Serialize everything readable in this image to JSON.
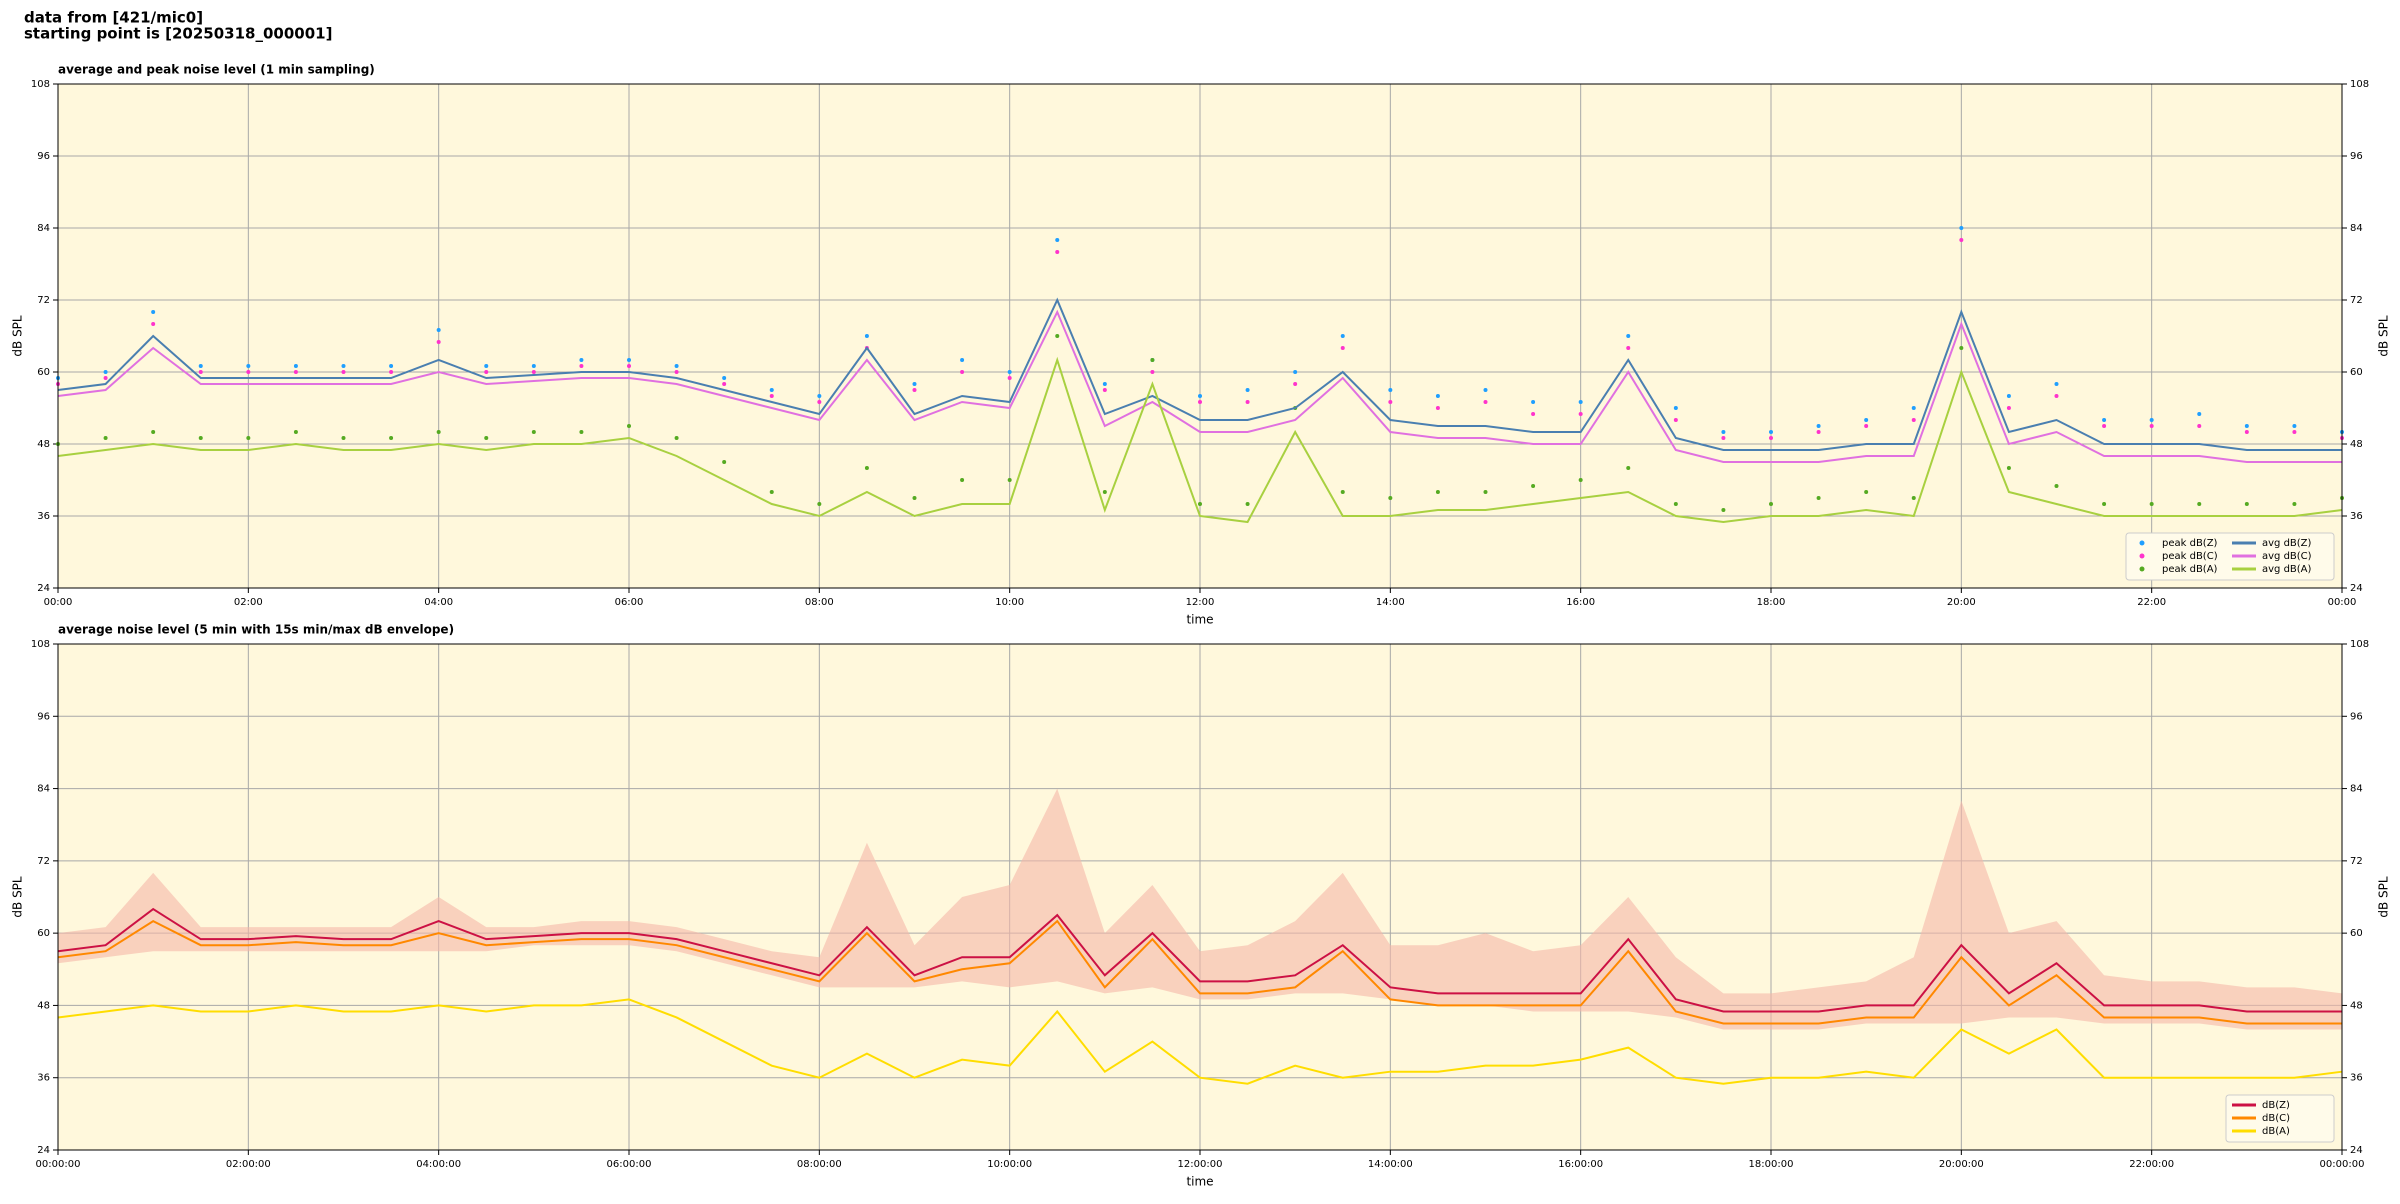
{
  "header": {
    "lines": [
      "data from [421/mic0]",
      "starting point is [20250318_000001]"
    ]
  },
  "chart_data": [
    {
      "type": "line",
      "title": "average and peak noise level (1 min sampling)",
      "x_label": "time",
      "y_label": "dB SPL",
      "y2_label": "dB SPL",
      "xlim": [
        0,
        24
      ],
      "xticks": [
        {
          "value": 0,
          "label": "00:00"
        },
        {
          "value": 2,
          "label": "02:00"
        },
        {
          "value": 4,
          "label": "04:00"
        },
        {
          "value": 6,
          "label": "06:00"
        },
        {
          "value": 8,
          "label": "08:00"
        },
        {
          "value": 10,
          "label": "10:00"
        },
        {
          "value": 12,
          "label": "12:00"
        },
        {
          "value": 14,
          "label": "14:00"
        },
        {
          "value": 16,
          "label": "16:00"
        },
        {
          "value": 18,
          "label": "18:00"
        },
        {
          "value": 20,
          "label": "20:00"
        },
        {
          "value": 22,
          "label": "22:00"
        },
        {
          "value": 24,
          "label": "00:00"
        }
      ],
      "ylim": [
        24,
        108
      ],
      "yticks": [
        24,
        36,
        48,
        60,
        72,
        84,
        96,
        108
      ],
      "grid": true,
      "legend": "lower right",
      "x": [
        0,
        0.5,
        1,
        1.5,
        2,
        2.5,
        3,
        3.5,
        4,
        4.5,
        5,
        5.5,
        6,
        6.5,
        7,
        7.5,
        8,
        8.5,
        9,
        9.5,
        10,
        10.5,
        11,
        11.5,
        12,
        12.5,
        13,
        13.5,
        14,
        14.5,
        15,
        15.5,
        16,
        16.5,
        17,
        17.5,
        18,
        18.5,
        19,
        19.5,
        20,
        20.5,
        21,
        21.5,
        22,
        22.5,
        23,
        23.5,
        24
      ],
      "series": [
        {
          "name": "peak dB(Z)",
          "kind": "scatter",
          "color": "#1f9fff",
          "values": [
            59,
            60,
            70,
            61,
            61,
            61,
            61,
            61,
            67,
            61,
            61,
            62,
            62,
            61,
            59,
            57,
            56,
            66,
            58,
            62,
            60,
            82,
            58,
            62,
            56,
            57,
            60,
            66,
            57,
            56,
            57,
            55,
            55,
            66,
            54,
            50,
            50,
            51,
            52,
            54,
            84,
            56,
            58,
            52,
            52,
            53,
            51,
            51,
            50
          ]
        },
        {
          "name": "peak dB(C)",
          "kind": "scatter",
          "color": "#ff33cc",
          "values": [
            58,
            59,
            68,
            60,
            60,
            60,
            60,
            60,
            65,
            60,
            60,
            61,
            61,
            60,
            58,
            56,
            55,
            64,
            57,
            60,
            59,
            80,
            57,
            60,
            55,
            55,
            58,
            64,
            55,
            54,
            55,
            53,
            53,
            64,
            52,
            49,
            49,
            50,
            51,
            52,
            82,
            54,
            56,
            51,
            51,
            51,
            50,
            50,
            49
          ]
        },
        {
          "name": "peak dB(A)",
          "kind": "scatter",
          "color": "#55aa22",
          "values": [
            48,
            49,
            50,
            49,
            49,
            50,
            49,
            49,
            50,
            49,
            50,
            50,
            51,
            49,
            45,
            40,
            38,
            44,
            39,
            42,
            42,
            66,
            40,
            62,
            38,
            38,
            54,
            40,
            39,
            40,
            40,
            41,
            42,
            44,
            38,
            37,
            38,
            39,
            40,
            39,
            64,
            44,
            41,
            38,
            38,
            38,
            38,
            38,
            39
          ]
        },
        {
          "name": "avg dB(Z)",
          "kind": "line",
          "color": "#4a7fb0",
          "values": [
            57,
            58,
            66,
            59,
            59,
            59,
            59,
            59,
            62,
            59,
            59.5,
            60,
            60,
            59,
            57,
            55,
            53,
            64,
            53,
            56,
            55,
            72,
            53,
            56,
            52,
            52,
            54,
            60,
            52,
            51,
            51,
            50,
            50,
            62,
            49,
            47,
            47,
            47,
            48,
            48,
            70,
            50,
            52,
            48,
            48,
            48,
            47,
            47,
            47
          ]
        },
        {
          "name": "avg dB(C)",
          "kind": "line",
          "color": "#e070e0",
          "values": [
            56,
            57,
            64,
            58,
            58,
            58,
            58,
            58,
            60,
            58,
            58.5,
            59,
            59,
            58,
            56,
            54,
            52,
            62,
            52,
            55,
            54,
            70,
            51,
            55,
            50,
            50,
            52,
            59,
            50,
            49,
            49,
            48,
            48,
            60,
            47,
            45,
            45,
            45,
            46,
            46,
            68,
            48,
            50,
            46,
            46,
            46,
            45,
            45,
            45
          ]
        },
        {
          "name": "avg dB(A)",
          "kind": "line",
          "color": "#a8d040",
          "values": [
            46,
            47,
            48,
            47,
            47,
            48,
            47,
            47,
            48,
            47,
            48,
            48,
            49,
            46,
            42,
            38,
            36,
            40,
            36,
            38,
            38,
            62,
            37,
            58,
            36,
            35,
            50,
            36,
            36,
            37,
            37,
            38,
            39,
            40,
            36,
            35,
            36,
            36,
            37,
            36,
            60,
            40,
            38,
            36,
            36,
            36,
            36,
            36,
            37
          ]
        }
      ]
    },
    {
      "type": "line",
      "title": "average noise level (5 min with 15s min/max dB envelope)",
      "x_label": "time",
      "y_label": "dB SPL",
      "y2_label": "dB SPL",
      "xlim": [
        0,
        24
      ],
      "xticks": [
        {
          "value": 0,
          "label": "00:00:00"
        },
        {
          "value": 2,
          "label": "02:00:00"
        },
        {
          "value": 4,
          "label": "04:00:00"
        },
        {
          "value": 6,
          "label": "06:00:00"
        },
        {
          "value": 8,
          "label": "08:00:00"
        },
        {
          "value": 10,
          "label": "10:00:00"
        },
        {
          "value": 12,
          "label": "12:00:00"
        },
        {
          "value": 14,
          "label": "14:00:00"
        },
        {
          "value": 16,
          "label": "16:00:00"
        },
        {
          "value": 18,
          "label": "18:00:00"
        },
        {
          "value": 20,
          "label": "20:00:00"
        },
        {
          "value": 22,
          "label": "22:00:00"
        },
        {
          "value": 24,
          "label": "00:00:00"
        }
      ],
      "ylim": [
        24,
        108
      ],
      "yticks": [
        24,
        36,
        48,
        60,
        72,
        84,
        96,
        108
      ],
      "grid": true,
      "legend": "lower right",
      "x": [
        0,
        0.5,
        1,
        1.5,
        2,
        2.5,
        3,
        3.5,
        4,
        4.5,
        5,
        5.5,
        6,
        6.5,
        7,
        7.5,
        8,
        8.5,
        9,
        9.5,
        10,
        10.5,
        11,
        11.5,
        12,
        12.5,
        13,
        13.5,
        14,
        14.5,
        15,
        15.5,
        16,
        16.5,
        17,
        17.5,
        18,
        18.5,
        19,
        19.5,
        20,
        20.5,
        21,
        21.5,
        22,
        22.5,
        23,
        23.5,
        24
      ],
      "envelope": {
        "color": "#f5b8a8",
        "max": [
          60,
          61,
          70,
          61,
          61,
          61,
          61,
          61,
          66,
          61,
          61,
          62,
          62,
          61,
          59,
          57,
          56,
          75,
          58,
          66,
          68,
          84,
          60,
          68,
          57,
          58,
          62,
          70,
          58,
          58,
          60,
          57,
          58,
          66,
          56,
          50,
          50,
          51,
          52,
          56,
          82,
          60,
          62,
          53,
          52,
          52,
          51,
          51,
          50
        ],
        "min": [
          55,
          56,
          57,
          57,
          57,
          57,
          57,
          57,
          57,
          57,
          58,
          58,
          58,
          57,
          55,
          53,
          51,
          51,
          51,
          52,
          51,
          52,
          50,
          51,
          49,
          49,
          50,
          50,
          49,
          48,
          48,
          47,
          47,
          47,
          46,
          44,
          44,
          44,
          45,
          45,
          45,
          46,
          46,
          45,
          45,
          45,
          44,
          44,
          44
        ]
      },
      "series": [
        {
          "name": "dB(Z)",
          "kind": "line",
          "color": "#cc1144",
          "values": [
            57,
            58,
            64,
            59,
            59,
            59.5,
            59,
            59,
            62,
            59,
            59.5,
            60,
            60,
            59,
            57,
            55,
            53,
            61,
            53,
            56,
            56,
            63,
            53,
            60,
            52,
            52,
            53,
            58,
            51,
            50,
            50,
            50,
            50,
            59,
            49,
            47,
            47,
            47,
            48,
            48,
            58,
            50,
            55,
            48,
            48,
            48,
            47,
            47,
            47
          ]
        },
        {
          "name": "dB(C)",
          "kind": "line",
          "color": "#ff8800",
          "values": [
            56,
            57,
            62,
            58,
            58,
            58.5,
            58,
            58,
            60,
            58,
            58.5,
            59,
            59,
            58,
            56,
            54,
            52,
            60,
            52,
            54,
            55,
            62,
            51,
            59,
            50,
            50,
            51,
            57,
            49,
            48,
            48,
            48,
            48,
            57,
            47,
            45,
            45,
            45,
            46,
            46,
            56,
            48,
            53,
            46,
            46,
            46,
            45,
            45,
            45
          ]
        },
        {
          "name": "dB(A)",
          "kind": "line",
          "color": "#ffdd00",
          "values": [
            46,
            47,
            48,
            47,
            47,
            48,
            47,
            47,
            48,
            47,
            48,
            48,
            49,
            46,
            42,
            38,
            36,
            40,
            36,
            39,
            38,
            47,
            37,
            42,
            36,
            35,
            38,
            36,
            37,
            37,
            38,
            38,
            39,
            41,
            36,
            35,
            36,
            36,
            37,
            36,
            44,
            40,
            44,
            36,
            36,
            36,
            36,
            36,
            37
          ]
        }
      ]
    }
  ]
}
